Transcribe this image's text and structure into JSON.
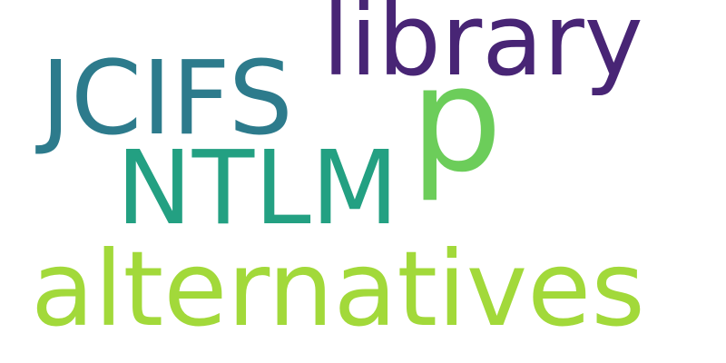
{
  "words": [
    {
      "text": "library",
      "color": "#482575"
    },
    {
      "text": "JCIFS",
      "color": "#2D7B8C"
    },
    {
      "text": "p",
      "color": "#6CCD5A"
    },
    {
      "text": "NTLM",
      "color": "#23A082"
    },
    {
      "text": "alternatives",
      "color": "#A2D93A"
    }
  ],
  "background": "#ffffff"
}
